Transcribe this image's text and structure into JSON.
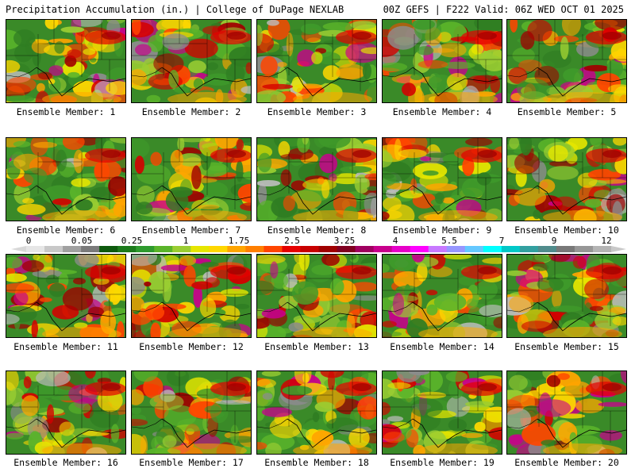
{
  "header": {
    "left_title": "Precipitation Accumulation (in.) | College of DuPage NEXLAB",
    "right_title": "00Z GEFS | F222 Valid: 06Z WED OCT 01 2025"
  },
  "panels": [
    {
      "label": "Ensemble Member: 1"
    },
    {
      "label": "Ensemble Member: 2"
    },
    {
      "label": "Ensemble Member: 3"
    },
    {
      "label": "Ensemble Member: 4"
    },
    {
      "label": "Ensemble Member: 5"
    },
    {
      "label": "Ensemble Member: 6"
    },
    {
      "label": "Ensemble Member: 7"
    },
    {
      "label": "Ensemble Member: 8"
    },
    {
      "label": "Ensemble Member: 9"
    },
    {
      "label": "Ensemble Member: 10"
    },
    {
      "label": "Ensemble Member: 11"
    },
    {
      "label": "Ensemble Member: 12"
    },
    {
      "label": "Ensemble Member: 13"
    },
    {
      "label": "Ensemble Member: 14"
    },
    {
      "label": "Ensemble Member: 15"
    },
    {
      "label": "Ensemble Member: 16"
    },
    {
      "label": "Ensemble Member: 17"
    },
    {
      "label": "Ensemble Member: 18"
    },
    {
      "label": "Ensemble Member: 19"
    },
    {
      "label": "Ensemble Member: 20"
    }
  ],
  "colorbar": {
    "tick_labels": [
      "0",
      "0.05",
      "0.25",
      "1",
      "1.75",
      "2.5",
      "3.25",
      "4",
      "5.5",
      "7",
      "9",
      "12"
    ],
    "colors": [
      "#e6e6e6",
      "#c8c8c8",
      "#a0a0a0",
      "#7a7a7a",
      "#0e5a0e",
      "#1c7a1c",
      "#2e9a2e",
      "#5ab42a",
      "#9acd32",
      "#e6e600",
      "#ffd700",
      "#ffa500",
      "#ff7f00",
      "#ff4500",
      "#e60000",
      "#c80000",
      "#a00000",
      "#800020",
      "#a00060",
      "#c8008c",
      "#e600c8",
      "#ff00ff",
      "#c878ff",
      "#9696ff",
      "#64c8ff",
      "#00ffff",
      "#00c8c8",
      "#32a0a0",
      "#508c8c",
      "#787878",
      "#969696",
      "#b4b4b4"
    ]
  }
}
